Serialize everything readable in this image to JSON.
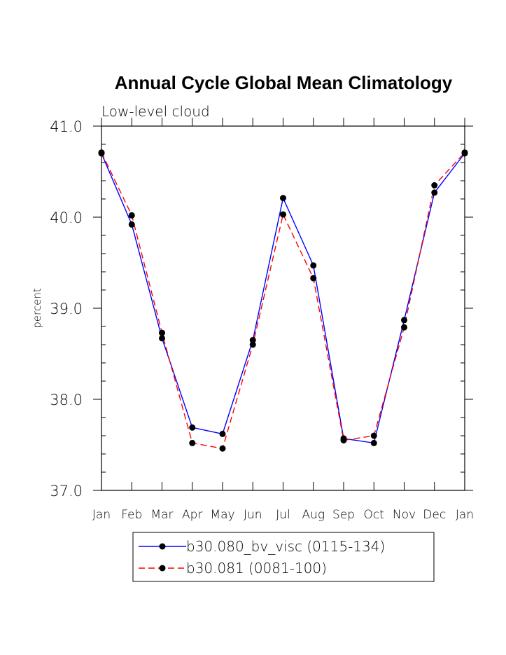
{
  "chart_data": {
    "type": "line",
    "title": "Annual Cycle Global Mean Climatology",
    "subtitle": "Low-level cloud",
    "xlabel": "",
    "ylabel": "percent",
    "categories": [
      "Jan",
      "Feb",
      "Mar",
      "Apr",
      "May",
      "Jun",
      "Jul",
      "Aug",
      "Sep",
      "Oct",
      "Nov",
      "Dec",
      "Jan"
    ],
    "ylim": [
      37.0,
      41.0
    ],
    "yticks": [
      "37.0",
      "38.0",
      "39.0",
      "40.0",
      "41.0"
    ],
    "grid": false,
    "legend_position": "bottom",
    "series": [
      {
        "name": "b30.080_bv_visc (0115-134)",
        "color": "#0000ff",
        "dash": "solid",
        "values": [
          40.7,
          39.92,
          38.67,
          37.69,
          37.62,
          38.65,
          40.21,
          39.47,
          37.57,
          37.52,
          38.87,
          40.27,
          40.7
        ]
      },
      {
        "name": "b30.081 (0081-100)",
        "color": "#ff0000",
        "dash": "dashed",
        "values": [
          40.71,
          40.02,
          38.73,
          37.52,
          37.46,
          38.6,
          40.03,
          39.33,
          37.55,
          37.6,
          38.79,
          40.35,
          40.71
        ]
      }
    ]
  }
}
